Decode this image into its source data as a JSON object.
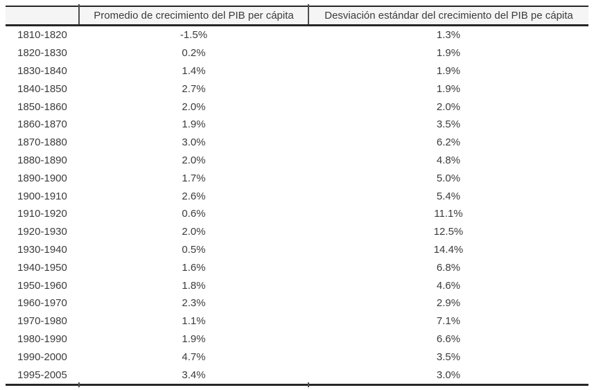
{
  "colors": {
    "border": "#262626",
    "header_bg": "#f5f5f5",
    "text": "#3b3b3b",
    "divider": "#4d4d4d"
  },
  "chart_data": {
    "type": "table",
    "title": "",
    "columns": [
      "",
      "Promedio de crecimiento del PIB per cápita",
      "Desviación estándar del crecimiento del PIB pe cápita"
    ],
    "rows": [
      [
        "1810-1820",
        "-1.5%",
        "1.3%"
      ],
      [
        "1820-1830",
        "0.2%",
        "1.9%"
      ],
      [
        "1830-1840",
        "1.4%",
        "1.9%"
      ],
      [
        "1840-1850",
        "2.7%",
        "1.9%"
      ],
      [
        "1850-1860",
        "2.0%",
        "2.0%"
      ],
      [
        "1860-1870",
        "1.9%",
        "3.5%"
      ],
      [
        "1870-1880",
        "3.0%",
        "6.2%"
      ],
      [
        "1880-1890",
        "2.0%",
        "4.8%"
      ],
      [
        "1890-1900",
        "1.7%",
        "5.0%"
      ],
      [
        "1900-1910",
        "2.6%",
        "5.4%"
      ],
      [
        "1910-1920",
        "0.6%",
        "11.1%"
      ],
      [
        "1920-1930",
        "2.0%",
        "12.5%"
      ],
      [
        "1930-1940",
        "0.5%",
        "14.4%"
      ],
      [
        "1940-1950",
        "1.6%",
        "6.8%"
      ],
      [
        "1950-1960",
        "1.8%",
        "4.6%"
      ],
      [
        "1960-1970",
        "2.3%",
        "2.9%"
      ],
      [
        "1970-1980",
        "1.1%",
        "7.1%"
      ],
      [
        "1980-1990",
        "1.9%",
        "6.6%"
      ],
      [
        "1990-2000",
        "4.7%",
        "3.5%"
      ],
      [
        "1995-2005",
        "3.4%",
        "3.0%"
      ]
    ]
  }
}
